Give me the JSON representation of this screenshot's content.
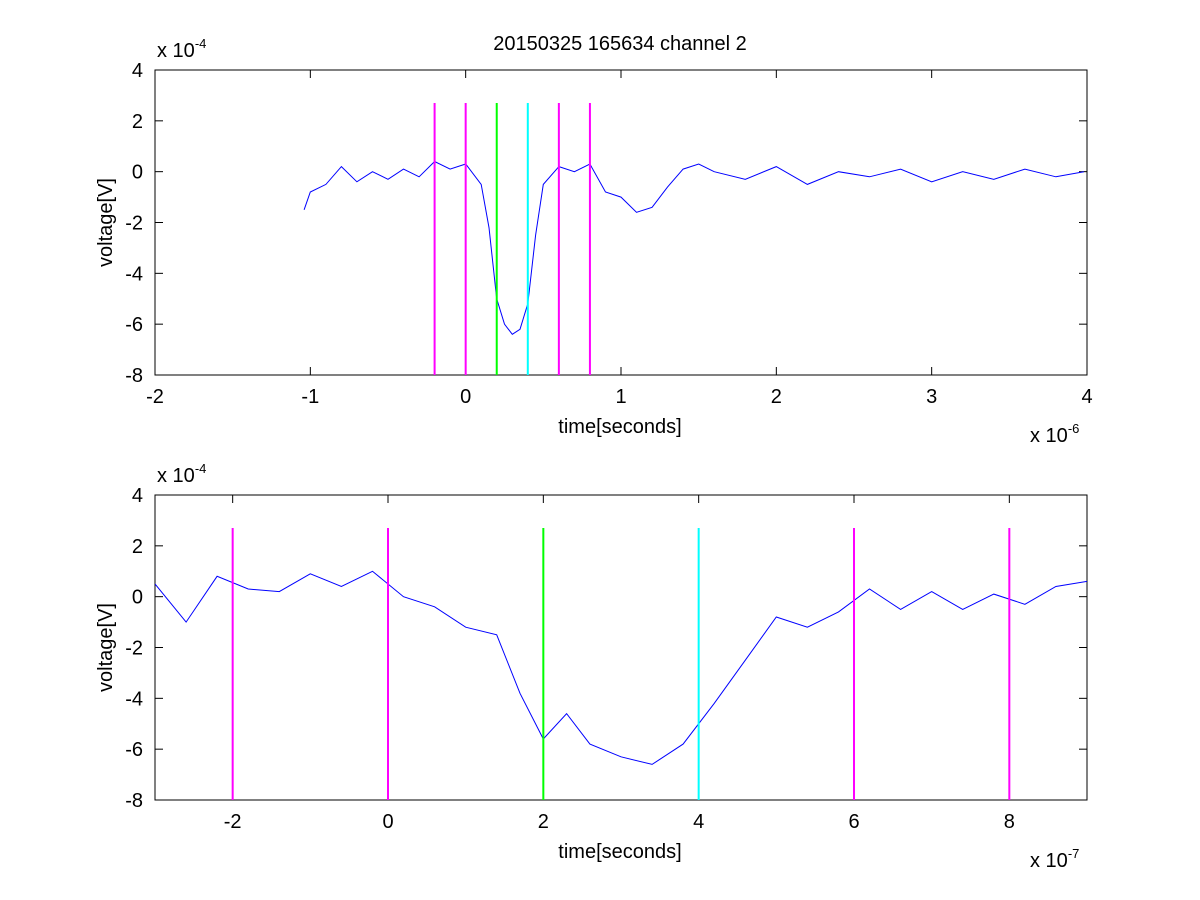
{
  "figure": {
    "title": "20150325 165634 channel 2"
  },
  "chart_data": [
    {
      "type": "line",
      "title": "20150325 165634 channel 2",
      "xlabel": "time[seconds]",
      "ylabel": "voltage[V]",
      "x_multiplier": {
        "base": "x 10",
        "exponent": "-6"
      },
      "y_multiplier": {
        "base": "x 10",
        "exponent": "-4"
      },
      "xlim": [
        -2,
        4
      ],
      "ylim": [
        -8,
        4
      ],
      "xticks": [
        -2,
        -1,
        0,
        1,
        2,
        3,
        4
      ],
      "yticks": [
        -8,
        -6,
        -4,
        -2,
        0,
        2,
        4
      ],
      "grid": false,
      "series": [
        {
          "color": "#0000ff",
          "x": [
            -1.04,
            -1.0,
            -0.9,
            -0.8,
            -0.7,
            -0.6,
            -0.5,
            -0.4,
            -0.3,
            -0.2,
            -0.1,
            0.0,
            0.1,
            0.15,
            0.2,
            0.25,
            0.3,
            0.35,
            0.4,
            0.45,
            0.5,
            0.6,
            0.7,
            0.8,
            0.9,
            1.0,
            1.1,
            1.2,
            1.3,
            1.4,
            1.5,
            1.6,
            1.8,
            2.0,
            2.2,
            2.4,
            2.6,
            2.8,
            3.0,
            3.2,
            3.4,
            3.6,
            3.8,
            3.98
          ],
          "y": [
            -1.5,
            -0.8,
            -0.5,
            0.2,
            -0.4,
            0.0,
            -0.3,
            0.1,
            -0.2,
            0.4,
            0.1,
            0.3,
            -0.5,
            -2.2,
            -5.0,
            -6.0,
            -6.4,
            -6.2,
            -5.2,
            -2.5,
            -0.5,
            0.2,
            0.0,
            0.3,
            -0.8,
            -1.0,
            -1.6,
            -1.4,
            -0.6,
            0.1,
            0.3,
            0.0,
            -0.3,
            0.2,
            -0.5,
            0.0,
            -0.2,
            0.1,
            -0.4,
            0.0,
            -0.3,
            0.1,
            -0.2,
            0.0
          ]
        }
      ],
      "markers": [
        {
          "x": -0.2,
          "color": "#ff00ff"
        },
        {
          "x": 0.0,
          "color": "#ff00ff"
        },
        {
          "x": 0.2,
          "color": "#00ff00"
        },
        {
          "x": 0.4,
          "color": "#00ffff"
        },
        {
          "x": 0.6,
          "color": "#ff00ff"
        },
        {
          "x": 0.8,
          "color": "#ff00ff"
        }
      ],
      "marker_ymax": 2.7
    },
    {
      "type": "line",
      "xlabel": "time[seconds]",
      "ylabel": "voltage[V]",
      "x_multiplier": {
        "base": "x 10",
        "exponent": "-7"
      },
      "y_multiplier": {
        "base": "x 10",
        "exponent": "-4"
      },
      "xlim": [
        -3,
        9
      ],
      "ylim": [
        -8,
        4
      ],
      "xticks": [
        -2,
        0,
        2,
        4,
        6,
        8
      ],
      "yticks": [
        -8,
        -6,
        -4,
        -2,
        0,
        2,
        4
      ],
      "grid": false,
      "series": [
        {
          "color": "#0000ff",
          "x": [
            -3.0,
            -2.6,
            -2.2,
            -1.8,
            -1.4,
            -1.0,
            -0.6,
            -0.2,
            0.2,
            0.6,
            1.0,
            1.4,
            1.7,
            2.0,
            2.3,
            2.6,
            3.0,
            3.4,
            3.8,
            4.2,
            4.6,
            5.0,
            5.4,
            5.8,
            6.2,
            6.6,
            7.0,
            7.4,
            7.8,
            8.2,
            8.6,
            9.0
          ],
          "y": [
            0.5,
            -1.0,
            0.8,
            0.3,
            0.2,
            0.9,
            0.4,
            1.0,
            0.0,
            -0.4,
            -1.2,
            -1.5,
            -3.8,
            -5.6,
            -4.6,
            -5.8,
            -6.3,
            -6.6,
            -5.8,
            -4.2,
            -2.5,
            -0.8,
            -1.2,
            -0.6,
            0.3,
            -0.5,
            0.2,
            -0.5,
            0.1,
            -0.3,
            0.4,
            0.6
          ]
        }
      ],
      "markers": [
        {
          "x": -2,
          "color": "#ff00ff"
        },
        {
          "x": 0,
          "color": "#ff00ff"
        },
        {
          "x": 2,
          "color": "#00ff00"
        },
        {
          "x": 4,
          "color": "#00ffff"
        },
        {
          "x": 6,
          "color": "#ff00ff"
        },
        {
          "x": 8,
          "color": "#ff00ff"
        }
      ],
      "marker_ymax": 2.7
    }
  ]
}
